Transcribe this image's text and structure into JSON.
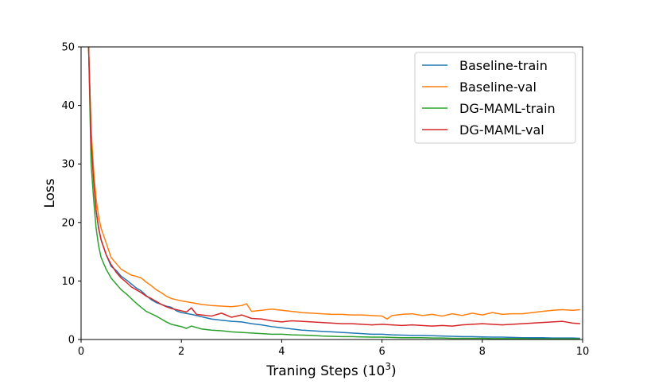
{
  "chart_data": {
    "type": "line",
    "title": "",
    "xlabel": "Traning Steps (10",
    "xlabel_sup": "3",
    "xlabel_suffix": ")",
    "ylabel": "Loss",
    "xlim": [
      0,
      10
    ],
    "ylim": [
      0,
      50
    ],
    "xticks": [
      0,
      2,
      4,
      6,
      8,
      10
    ],
    "yticks": [
      0,
      10,
      20,
      30,
      40,
      50
    ],
    "grid": false,
    "legend_position": "top-right",
    "series": [
      {
        "name": "Baseline-train",
        "color": "#1f77b4",
        "x": [
          0.15,
          0.2,
          0.25,
          0.3,
          0.35,
          0.4,
          0.5,
          0.6,
          0.7,
          0.8,
          0.9,
          1.0,
          1.1,
          1.2,
          1.3,
          1.4,
          1.5,
          1.6,
          1.7,
          1.8,
          1.9,
          2.0,
          2.2,
          2.4,
          2.6,
          2.8,
          3.0,
          3.2,
          3.4,
          3.6,
          3.8,
          4.0,
          4.2,
          4.4,
          4.6,
          4.8,
          5.0,
          5.2,
          5.4,
          5.6,
          5.8,
          6.0,
          6.2,
          6.4,
          6.6,
          6.8,
          7.0,
          7.2,
          7.4,
          7.6,
          7.8,
          8.0,
          8.2,
          8.4,
          8.6,
          8.8,
          9.0,
          9.2,
          9.4,
          9.6,
          9.8,
          9.95
        ],
        "values": [
          50,
          35,
          28,
          22,
          19,
          17,
          14.5,
          12.5,
          11.8,
          10.8,
          10.2,
          9.5,
          8.8,
          8.3,
          7.5,
          6.8,
          6.3,
          6.0,
          5.7,
          5.5,
          4.9,
          4.6,
          4.3,
          3.9,
          3.5,
          3.3,
          3.1,
          3.0,
          2.7,
          2.5,
          2.2,
          2.0,
          1.8,
          1.6,
          1.5,
          1.4,
          1.3,
          1.2,
          1.1,
          1.0,
          0.9,
          0.9,
          0.8,
          0.75,
          0.7,
          0.7,
          0.65,
          0.6,
          0.55,
          0.5,
          0.5,
          0.45,
          0.4,
          0.4,
          0.35,
          0.3,
          0.3,
          0.3,
          0.25,
          0.25,
          0.25,
          0.2
        ]
      },
      {
        "name": "Baseline-val",
        "color": "#ff7f0e",
        "x": [
          0.15,
          0.2,
          0.25,
          0.3,
          0.35,
          0.4,
          0.5,
          0.6,
          0.7,
          0.8,
          0.9,
          1.0,
          1.1,
          1.2,
          1.3,
          1.4,
          1.5,
          1.6,
          1.7,
          1.8,
          1.9,
          2.0,
          2.2,
          2.4,
          2.6,
          2.8,
          3.0,
          3.2,
          3.3,
          3.4,
          3.6,
          3.8,
          4.0,
          4.2,
          4.4,
          4.6,
          4.8,
          5.0,
          5.2,
          5.4,
          5.6,
          5.8,
          6.0,
          6.1,
          6.2,
          6.4,
          6.6,
          6.8,
          7.0,
          7.2,
          7.4,
          7.6,
          7.8,
          8.0,
          8.2,
          8.4,
          8.6,
          8.8,
          9.0,
          9.2,
          9.4,
          9.6,
          9.8,
          9.95
        ],
        "values": [
          50,
          36,
          29,
          24,
          21,
          19,
          16.5,
          14,
          13,
          12,
          11.5,
          11,
          10.8,
          10.5,
          9.8,
          9.2,
          8.5,
          8.0,
          7.4,
          7.0,
          6.8,
          6.6,
          6.3,
          6.0,
          5.8,
          5.7,
          5.6,
          5.8,
          6.1,
          4.8,
          5.0,
          5.2,
          5.0,
          4.8,
          4.6,
          4.5,
          4.4,
          4.3,
          4.3,
          4.2,
          4.2,
          4.1,
          4.0,
          3.5,
          4.1,
          4.3,
          4.4,
          4.1,
          4.3,
          4.0,
          4.4,
          4.1,
          4.5,
          4.2,
          4.6,
          4.3,
          4.4,
          4.4,
          4.6,
          4.8,
          5.0,
          5.1,
          5.0,
          5.1
        ]
      },
      {
        "name": "DG-MAML-train",
        "color": "#2ca02c",
        "x": [
          0.15,
          0.2,
          0.25,
          0.3,
          0.35,
          0.4,
          0.5,
          0.6,
          0.7,
          0.8,
          0.9,
          1.0,
          1.1,
          1.2,
          1.3,
          1.4,
          1.5,
          1.6,
          1.7,
          1.8,
          1.9,
          2.0,
          2.1,
          2.2,
          2.4,
          2.6,
          2.8,
          3.0,
          3.2,
          3.4,
          3.6,
          3.8,
          4.0,
          4.2,
          4.4,
          4.6,
          4.8,
          5.0,
          5.2,
          5.4,
          5.6,
          5.8,
          6.0,
          6.2,
          6.4,
          6.6,
          6.8,
          7.0,
          7.2,
          7.4,
          7.6,
          7.8,
          8.0,
          8.2,
          8.4,
          8.6,
          8.8,
          9.0,
          9.2,
          9.4,
          9.6,
          9.8,
          9.95
        ],
        "values": [
          50,
          30,
          24,
          19,
          16,
          14,
          12,
          10.5,
          9.5,
          8.5,
          7.8,
          7.0,
          6.2,
          5.5,
          4.8,
          4.4,
          4.0,
          3.5,
          3.0,
          2.6,
          2.4,
          2.2,
          1.9,
          2.3,
          1.8,
          1.6,
          1.5,
          1.3,
          1.2,
          1.1,
          1.0,
          0.9,
          0.9,
          0.8,
          0.75,
          0.7,
          0.6,
          0.55,
          0.5,
          0.5,
          0.45,
          0.4,
          0.4,
          0.35,
          0.3,
          0.3,
          0.3,
          0.25,
          0.25,
          0.2,
          0.2,
          0.2,
          0.2,
          0.15,
          0.15,
          0.15,
          0.15,
          0.1,
          0.1,
          0.1,
          0.1,
          0.1,
          0.1
        ]
      },
      {
        "name": "DG-MAML-val",
        "color": "#d62728",
        "x": [
          0.15,
          0.2,
          0.25,
          0.3,
          0.35,
          0.4,
          0.5,
          0.6,
          0.7,
          0.8,
          0.9,
          1.0,
          1.1,
          1.2,
          1.3,
          1.4,
          1.5,
          1.6,
          1.7,
          1.8,
          1.9,
          2.0,
          2.1,
          2.2,
          2.3,
          2.4,
          2.6,
          2.8,
          3.0,
          3.2,
          3.4,
          3.6,
          3.8,
          4.0,
          4.2,
          4.4,
          4.6,
          4.8,
          5.0,
          5.2,
          5.4,
          5.6,
          5.8,
          6.0,
          6.2,
          6.4,
          6.6,
          6.8,
          7.0,
          7.2,
          7.4,
          7.6,
          7.8,
          8.0,
          8.2,
          8.4,
          8.6,
          8.8,
          9.0,
          9.2,
          9.4,
          9.6,
          9.8,
          9.95
        ],
        "values": [
          50,
          34,
          27,
          22,
          19,
          17,
          14.5,
          12.8,
          11.5,
          10.5,
          9.8,
          9.0,
          8.5,
          8.0,
          7.4,
          7.0,
          6.5,
          6.0,
          5.6,
          5.3,
          5.1,
          4.9,
          4.7,
          5.4,
          4.3,
          4.2,
          4.0,
          4.5,
          3.8,
          4.2,
          3.6,
          3.5,
          3.2,
          3.0,
          3.2,
          3.1,
          3.0,
          2.9,
          2.8,
          2.7,
          2.7,
          2.6,
          2.5,
          2.6,
          2.5,
          2.4,
          2.5,
          2.4,
          2.3,
          2.4,
          2.3,
          2.5,
          2.6,
          2.7,
          2.6,
          2.5,
          2.6,
          2.7,
          2.8,
          2.9,
          3.0,
          3.1,
          2.8,
          2.7
        ]
      }
    ]
  }
}
